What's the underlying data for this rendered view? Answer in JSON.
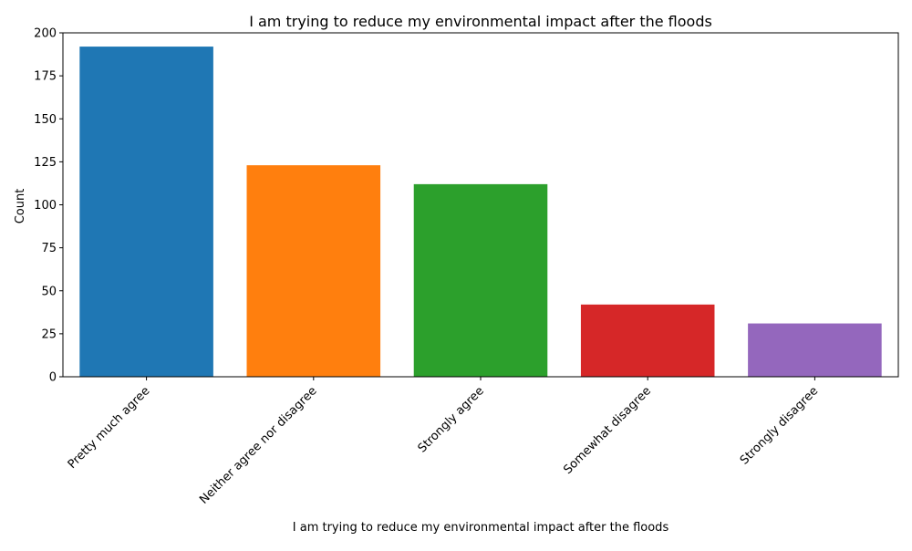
{
  "chart_data": {
    "type": "bar",
    "title": "I am trying to reduce my environmental impact after the floods",
    "xlabel": "I am trying to reduce my environmental impact after the floods",
    "ylabel": "Count",
    "categories": [
      "Pretty much agree",
      "Neither agree nor disagree",
      "Strongly agree",
      "Somewhat disagree",
      "Strongly disagree"
    ],
    "values": [
      192,
      123,
      112,
      42,
      31
    ],
    "colors": [
      "#1f77b4",
      "#ff7f0e",
      "#2ca02c",
      "#d62728",
      "#9467bd"
    ],
    "ylim": [
      0,
      200
    ],
    "yticks": [
      0,
      25,
      50,
      75,
      100,
      125,
      150,
      175,
      200
    ],
    "grid": false,
    "legend": "none"
  }
}
